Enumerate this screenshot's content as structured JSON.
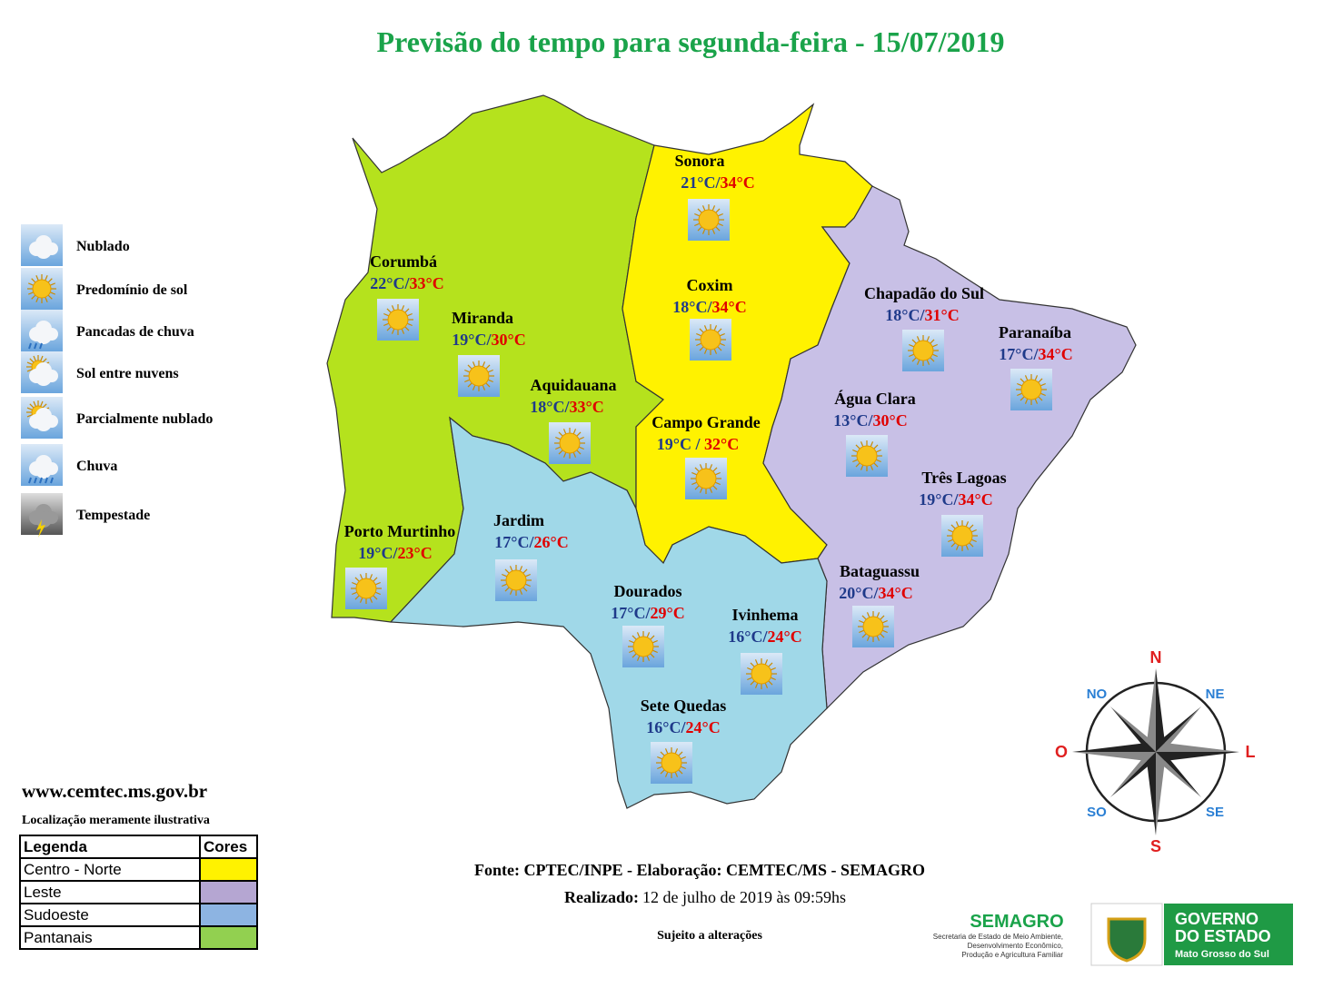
{
  "title": "Previsão do tempo para segunda-feira - 15/07/2019",
  "weather_legend": [
    "Nublado",
    "Predomínio de sol",
    "Pancadas de chuva",
    "Sol entre nuvens",
    "Parcialmente nublado",
    "Chuva",
    "Tempestade"
  ],
  "cities": [
    {
      "name": "Sonora",
      "min": "21°C/",
      "max": "34°C"
    },
    {
      "name": "Corumbá",
      "min": "22°C/",
      "max": "33°C"
    },
    {
      "name": "Miranda",
      "min": "19°C/",
      "max": "30°C"
    },
    {
      "name": "Coxim",
      "min": "18°C/",
      "max": "34°C"
    },
    {
      "name": "Aquidauana",
      "min": "18°C/",
      "max": "33°C"
    },
    {
      "name": "Campo Grande",
      "min": "19°C / ",
      "max": "32°C"
    },
    {
      "name": "Chapadão do Sul",
      "min": "18°C/",
      "max": "31°C"
    },
    {
      "name": "Paranaíba",
      "min": "17°C/",
      "max": "34°C"
    },
    {
      "name": "Água Clara",
      "min": "13°C/",
      "max": "30°C"
    },
    {
      "name": "Três Lagoas",
      "min": "19°C/",
      "max": "34°C"
    },
    {
      "name": "Bataguassu",
      "min": "20°C/",
      "max": "34°C"
    },
    {
      "name": "Porto Murtinho",
      "min": "19°C/",
      "max": "23°C"
    },
    {
      "name": "Jardim",
      "min": "17°C/",
      "max": "26°C"
    },
    {
      "name": "Dourados",
      "min": "17°C/",
      "max": "29°C"
    },
    {
      "name": "Ivinhema",
      "min": "16°C/",
      "max": "24°C"
    },
    {
      "name": "Sete Quedas",
      "min": "16°C/",
      "max": "24°C"
    }
  ],
  "compass": [
    "N",
    "NE",
    "L",
    "SE",
    "S",
    "SO",
    "O",
    "NO"
  ],
  "website": "www.cemtec.ms.gov.br",
  "disclaimer": "Localização meramente ilustrativa",
  "region_legend": {
    "header": [
      "Legenda",
      "Cores"
    ],
    "rows": [
      {
        "label": "Centro - Norte",
        "color": "#fff200"
      },
      {
        "label": "Leste",
        "color": "#b5a6d2"
      },
      {
        "label": "Sudoeste",
        "color": "#8db4e2"
      },
      {
        "label": "Pantanais",
        "color": "#92d050"
      }
    ]
  },
  "footer": {
    "source": "Fonte: CPTEC/INPE - Elaboração: CEMTEC/MS - SEMAGRO",
    "made_label": "Realizado:",
    "made_value": "12 de julho de 2019 às 09:59hs",
    "note": "Sujeito a alterações"
  },
  "logos": {
    "semagro": "SEMAGRO",
    "semagro_sub": [
      "Secretaria de Estado de Meio Ambiente,",
      "Desenvolvimento Econômico,",
      "Produção e Agricultura Familiar"
    ],
    "gov": [
      "GOVERNO",
      "DO ESTADO"
    ],
    "gov_sub": "Mato Grosso do Sul"
  }
}
